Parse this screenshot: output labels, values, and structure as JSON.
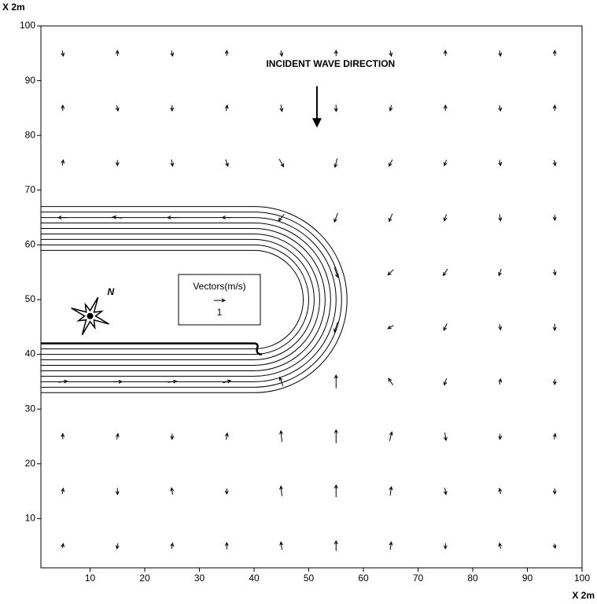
{
  "chart_data": {
    "type": "quiver",
    "annotation": "INCIDENT WAVE DIRECTION",
    "x_label": "X 2m",
    "y_label": "X 2m",
    "xlim": [
      1,
      100
    ],
    "ylim": [
      1,
      100
    ],
    "xticks": [
      10,
      20,
      30,
      40,
      50,
      60,
      70,
      80,
      90,
      100
    ],
    "yticks": [
      10,
      20,
      30,
      40,
      50,
      60,
      70,
      80,
      90,
      100
    ],
    "reference_vector": {
      "label": "Vectors(m/s)",
      "value": 1
    },
    "color": "#000000",
    "vector_x": [
      5,
      15,
      25,
      35,
      45,
      55,
      65,
      75,
      85,
      95
    ],
    "vector_y": [
      5,
      15,
      25,
      35,
      45,
      55,
      65,
      75,
      85,
      95
    ],
    "u": [
      [
        0.1,
        -0.1,
        0.1,
        0,
        -0.1,
        0,
        0.1,
        0,
        -0.1,
        0.1
      ],
      [
        0.1,
        0,
        -0.1,
        0,
        -0.1,
        0,
        0.1,
        0.1,
        -0.1,
        0
      ],
      [
        0,
        0.1,
        0,
        0.1,
        -0.1,
        0,
        0.2,
        0.1,
        0,
        0.1
      ],
      [
        0.8,
        0.8,
        0.8,
        0.7,
        -0.3,
        0,
        -0.4,
        -0.2,
        0.1,
        0
      ],
      [
        null,
        null,
        null,
        null,
        null,
        -0.3,
        -0.5,
        -0.3,
        0.1,
        0
      ],
      [
        null,
        null,
        null,
        null,
        null,
        0.3,
        -0.5,
        -0.4,
        -0.2,
        0.1
      ],
      [
        -0.8,
        -0.8,
        -0.8,
        -0.8,
        -0.5,
        -0.3,
        -0.3,
        -0.2,
        0.1,
        0
      ],
      [
        0.1,
        0,
        0.1,
        0.2,
        0.4,
        -0.2,
        -0.3,
        -0.2,
        0.1,
        0.1
      ],
      [
        0,
        0.1,
        0,
        0.1,
        0.1,
        0,
        -0.1,
        0,
        0.1,
        0
      ],
      [
        0.1,
        0,
        0.1,
        0,
        0.1,
        0,
        0.1,
        0,
        0.1,
        0
      ]
    ],
    "v": [
      [
        0.4,
        -0.5,
        0.5,
        0.6,
        0.7,
        0.9,
        0.7,
        -0.5,
        0.5,
        -0.4
      ],
      [
        0.5,
        -0.6,
        0.6,
        -0.5,
        0.9,
        1.1,
        0.8,
        -0.6,
        0.5,
        -0.5
      ],
      [
        0.5,
        0.5,
        -0.5,
        0.6,
        1.0,
        1.2,
        0.8,
        -0.7,
        -0.5,
        0.5
      ],
      [
        0.1,
        0,
        0.1,
        0.2,
        0.8,
        1.2,
        0.6,
        -0.6,
        0.5,
        -0.5
      ],
      [
        null,
        null,
        null,
        null,
        null,
        -0.9,
        -0.3,
        -0.6,
        -0.5,
        -0.6
      ],
      [
        null,
        null,
        null,
        null,
        null,
        -0.9,
        -0.5,
        -0.6,
        -0.6,
        -0.5
      ],
      [
        0,
        0.1,
        0,
        0,
        -0.6,
        -0.8,
        -0.7,
        -0.6,
        -0.6,
        -0.5
      ],
      [
        0.5,
        -0.5,
        -0.6,
        -0.6,
        -0.7,
        -0.8,
        -0.6,
        -0.5,
        -0.5,
        -0.5
      ],
      [
        0.5,
        -0.5,
        -0.5,
        0.5,
        -0.6,
        -0.6,
        -0.5,
        0.5,
        -0.5,
        0.5
      ],
      [
        -0.5,
        0.5,
        -0.5,
        0.5,
        -0.5,
        0.5,
        -0.5,
        0.5,
        -0.5,
        0.5
      ]
    ]
  }
}
